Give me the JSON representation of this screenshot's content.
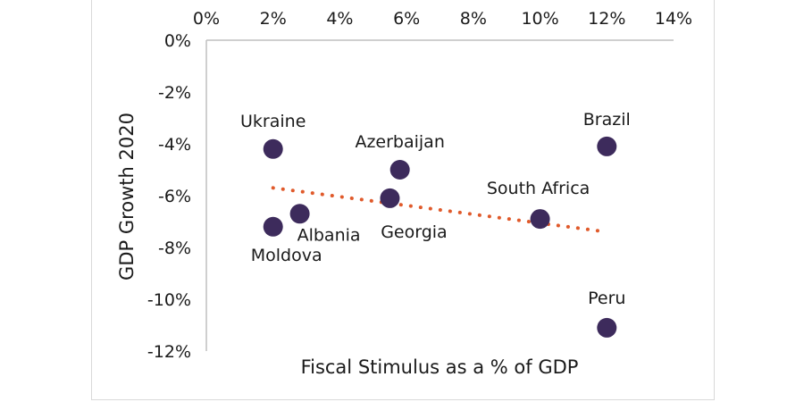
{
  "chart_data": {
    "type": "scatter",
    "title": "",
    "xlabel": "Fiscal Stimulus as a % of GDP",
    "ylabel": "GDP Growth 2020",
    "xlim": [
      0,
      14
    ],
    "ylim": [
      -12,
      0
    ],
    "x_ticks": [
      "0%",
      "2%",
      "4%",
      "6%",
      "8%",
      "10%",
      "12%",
      "14%"
    ],
    "y_ticks": [
      "0%",
      "-2%",
      "-4%",
      "-6%",
      "-8%",
      "-10%",
      "-12%"
    ],
    "grid": false,
    "legend": "none",
    "x_axis_position": "top",
    "point_color": "#3d2b5c",
    "trend_color": "#e05a2b",
    "points": [
      {
        "label": "Ukraine",
        "x": 2.0,
        "y": -4.2
      },
      {
        "label": "Moldova",
        "x": 2.0,
        "y": -7.2
      },
      {
        "label": "Albania",
        "x": 2.8,
        "y": -6.7
      },
      {
        "label": "Georgia",
        "x": 5.5,
        "y": -6.1
      },
      {
        "label": "Azerbaijan",
        "x": 5.8,
        "y": -5.0
      },
      {
        "label": "South Africa",
        "x": 10.0,
        "y": -6.9
      },
      {
        "label": "Brazil",
        "x": 12.0,
        "y": -4.1
      },
      {
        "label": "Peru",
        "x": 12.0,
        "y": -11.1
      }
    ],
    "trendline": {
      "style": "dotted",
      "from": [
        2,
        -5.7
      ],
      "to": [
        12,
        -7.4
      ]
    }
  }
}
